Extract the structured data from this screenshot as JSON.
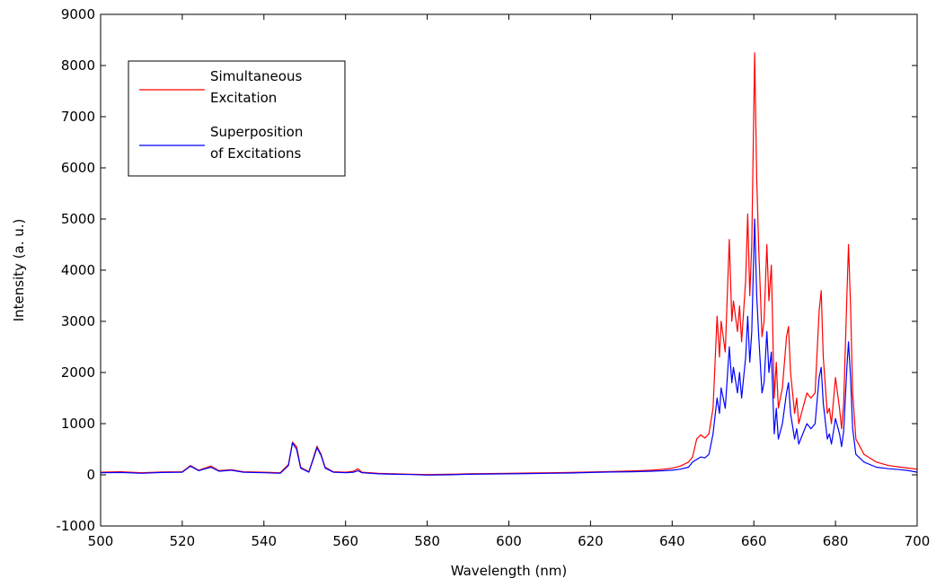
{
  "chart_data": {
    "type": "line",
    "xlabel": "Wavelength (nm)",
    "ylabel": "Intensity (a. u.)",
    "xlim": [
      500,
      700
    ],
    "ylim": [
      -1000,
      9000
    ],
    "xticks": [
      500,
      520,
      540,
      560,
      580,
      600,
      620,
      640,
      660,
      680,
      700
    ],
    "yticks": [
      -1000,
      0,
      1000,
      2000,
      3000,
      4000,
      5000,
      6000,
      7000,
      8000,
      9000
    ],
    "grid": false,
    "legend_position": "top-left",
    "series": [
      {
        "name_lines": [
          "Simultaneous",
          "Excitation"
        ],
        "color": "#ff0000",
        "points": [
          [
            500,
            50
          ],
          [
            505,
            60
          ],
          [
            510,
            40
          ],
          [
            515,
            55
          ],
          [
            520,
            60
          ],
          [
            522,
            180
          ],
          [
            524,
            90
          ],
          [
            527,
            170
          ],
          [
            529,
            80
          ],
          [
            532,
            100
          ],
          [
            535,
            60
          ],
          [
            540,
            50
          ],
          [
            544,
            40
          ],
          [
            546,
            200
          ],
          [
            547,
            640
          ],
          [
            548,
            550
          ],
          [
            549,
            150
          ],
          [
            551,
            60
          ],
          [
            552,
            300
          ],
          [
            553,
            560
          ],
          [
            554,
            400
          ],
          [
            555,
            150
          ],
          [
            557,
            60
          ],
          [
            560,
            50
          ],
          [
            562,
            70
          ],
          [
            563,
            120
          ],
          [
            564,
            50
          ],
          [
            568,
            30
          ],
          [
            572,
            20
          ],
          [
            576,
            10
          ],
          [
            580,
            5
          ],
          [
            585,
            10
          ],
          [
            590,
            20
          ],
          [
            595,
            25
          ],
          [
            600,
            30
          ],
          [
            605,
            35
          ],
          [
            610,
            40
          ],
          [
            615,
            45
          ],
          [
            620,
            55
          ],
          [
            625,
            65
          ],
          [
            630,
            75
          ],
          [
            635,
            90
          ],
          [
            638,
            110
          ],
          [
            640,
            130
          ],
          [
            642,
            170
          ],
          [
            644,
            250
          ],
          [
            645,
            350
          ],
          [
            646,
            700
          ],
          [
            647,
            780
          ],
          [
            648,
            720
          ],
          [
            649,
            800
          ],
          [
            650,
            1300
          ],
          [
            651,
            3100
          ],
          [
            651.6,
            2300
          ],
          [
            652,
            3000
          ],
          [
            653,
            2400
          ],
          [
            654,
            4600
          ],
          [
            654.6,
            3000
          ],
          [
            655,
            3400
          ],
          [
            656,
            2800
          ],
          [
            656.5,
            3300
          ],
          [
            657,
            2600
          ],
          [
            658,
            3800
          ],
          [
            658.5,
            5100
          ],
          [
            659,
            3500
          ],
          [
            659.5,
            4500
          ],
          [
            660.2,
            8250
          ],
          [
            660.7,
            5800
          ],
          [
            661.2,
            4400
          ],
          [
            662,
            2700
          ],
          [
            662.5,
            3000
          ],
          [
            663.2,
            4500
          ],
          [
            663.7,
            3400
          ],
          [
            664.3,
            4100
          ],
          [
            665,
            1500
          ],
          [
            665.5,
            2200
          ],
          [
            666,
            1300
          ],
          [
            667,
            1700
          ],
          [
            668,
            2700
          ],
          [
            668.5,
            2900
          ],
          [
            669,
            2000
          ],
          [
            670,
            1200
          ],
          [
            670.5,
            1500
          ],
          [
            671,
            1000
          ],
          [
            672,
            1300
          ],
          [
            673,
            1600
          ],
          [
            674,
            1500
          ],
          [
            675,
            1600
          ],
          [
            676,
            3200
          ],
          [
            676.5,
            3600
          ],
          [
            677,
            2300
          ],
          [
            678,
            1200
          ],
          [
            678.5,
            1300
          ],
          [
            679,
            1000
          ],
          [
            680,
            1900
          ],
          [
            681,
            1300
          ],
          [
            681.5,
            900
          ],
          [
            682,
            1400
          ],
          [
            682.8,
            3500
          ],
          [
            683.2,
            4500
          ],
          [
            683.7,
            3300
          ],
          [
            684.2,
            1600
          ],
          [
            685,
            700
          ],
          [
            687,
            400
          ],
          [
            690,
            250
          ],
          [
            693,
            180
          ],
          [
            696,
            150
          ],
          [
            698,
            130
          ],
          [
            700,
            110
          ]
        ]
      },
      {
        "name_lines": [
          "Superposition",
          "of Excitations"
        ],
        "color": "#0000ff",
        "points": [
          [
            500,
            40
          ],
          [
            505,
            45
          ],
          [
            510,
            30
          ],
          [
            515,
            45
          ],
          [
            520,
            50
          ],
          [
            522,
            170
          ],
          [
            524,
            80
          ],
          [
            527,
            150
          ],
          [
            529,
            70
          ],
          [
            532,
            90
          ],
          [
            535,
            50
          ],
          [
            540,
            40
          ],
          [
            544,
            30
          ],
          [
            546,
            180
          ],
          [
            547,
            620
          ],
          [
            548,
            500
          ],
          [
            549,
            130
          ],
          [
            551,
            50
          ],
          [
            552,
            280
          ],
          [
            553,
            530
          ],
          [
            554,
            380
          ],
          [
            555,
            130
          ],
          [
            557,
            50
          ],
          [
            560,
            40
          ],
          [
            562,
            50
          ],
          [
            563,
            80
          ],
          [
            564,
            40
          ],
          [
            568,
            20
          ],
          [
            572,
            10
          ],
          [
            576,
            5
          ],
          [
            580,
            -5
          ],
          [
            585,
            0
          ],
          [
            590,
            10
          ],
          [
            595,
            15
          ],
          [
            600,
            20
          ],
          [
            605,
            25
          ],
          [
            610,
            30
          ],
          [
            615,
            35
          ],
          [
            620,
            45
          ],
          [
            625,
            55
          ],
          [
            630,
            60
          ],
          [
            635,
            70
          ],
          [
            638,
            80
          ],
          [
            640,
            90
          ],
          [
            642,
            110
          ],
          [
            644,
            150
          ],
          [
            645,
            250
          ],
          [
            646,
            300
          ],
          [
            647,
            350
          ],
          [
            648,
            330
          ],
          [
            649,
            400
          ],
          [
            650,
            800
          ],
          [
            651,
            1500
          ],
          [
            651.6,
            1200
          ],
          [
            652,
            1700
          ],
          [
            653,
            1300
          ],
          [
            654,
            2500
          ],
          [
            654.6,
            1800
          ],
          [
            655,
            2100
          ],
          [
            656,
            1600
          ],
          [
            656.5,
            2000
          ],
          [
            657,
            1500
          ],
          [
            658,
            2300
          ],
          [
            658.5,
            3100
          ],
          [
            659,
            2200
          ],
          [
            659.5,
            2800
          ],
          [
            660.2,
            5000
          ],
          [
            660.7,
            3500
          ],
          [
            661.2,
            2700
          ],
          [
            662,
            1600
          ],
          [
            662.5,
            1800
          ],
          [
            663.2,
            2800
          ],
          [
            663.7,
            2000
          ],
          [
            664.3,
            2400
          ],
          [
            665,
            800
          ],
          [
            665.5,
            1300
          ],
          [
            666,
            700
          ],
          [
            667,
            1000
          ],
          [
            668,
            1600
          ],
          [
            668.5,
            1800
          ],
          [
            669,
            1200
          ],
          [
            670,
            700
          ],
          [
            670.5,
            900
          ],
          [
            671,
            600
          ],
          [
            672,
            800
          ],
          [
            673,
            1000
          ],
          [
            674,
            900
          ],
          [
            675,
            1000
          ],
          [
            676,
            1900
          ],
          [
            676.5,
            2100
          ],
          [
            677,
            1400
          ],
          [
            678,
            700
          ],
          [
            678.5,
            800
          ],
          [
            679,
            600
          ],
          [
            680,
            1100
          ],
          [
            681,
            800
          ],
          [
            681.5,
            550
          ],
          [
            682,
            850
          ],
          [
            682.8,
            2100
          ],
          [
            683.2,
            2600
          ],
          [
            683.7,
            1900
          ],
          [
            684.2,
            900
          ],
          [
            685,
            400
          ],
          [
            687,
            250
          ],
          [
            690,
            150
          ],
          [
            693,
            120
          ],
          [
            696,
            100
          ],
          [
            698,
            80
          ],
          [
            700,
            50
          ]
        ]
      }
    ]
  }
}
